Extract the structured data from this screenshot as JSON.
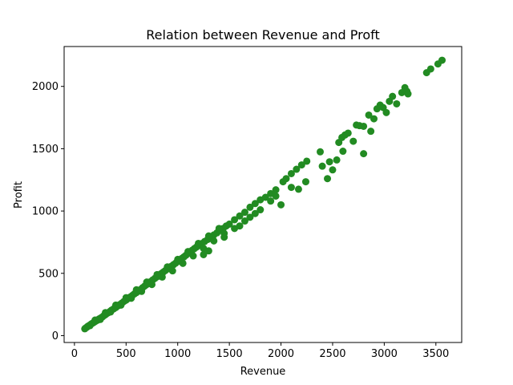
{
  "chart_data": {
    "type": "scatter",
    "title": "Relation between Revenue and Proft",
    "xlabel": "Revenue",
    "ylabel": "Profit",
    "xlim": [
      -100,
      3750
    ],
    "ylim": [
      -55,
      2320
    ],
    "xticks": [
      0,
      500,
      1000,
      1500,
      2000,
      2500,
      3000,
      3500
    ],
    "yticks": [
      0,
      500,
      1000,
      1500,
      2000
    ],
    "xtick_labels": [
      "0",
      "500",
      "1000",
      "1500",
      "2000",
      "2500",
      "3000",
      "3500"
    ],
    "ytick_labels": [
      "0",
      "500",
      "1000",
      "1500",
      "2000"
    ],
    "grid": false,
    "marker_color": "#228b22",
    "points": [
      [
        100,
        55
      ],
      [
        110,
        62
      ],
      [
        120,
        68
      ],
      [
        130,
        75
      ],
      [
        140,
        80
      ],
      [
        155,
        88
      ],
      [
        165,
        95
      ],
      [
        180,
        102
      ],
      [
        195,
        110
      ],
      [
        210,
        118
      ],
      [
        225,
        125
      ],
      [
        240,
        135
      ],
      [
        255,
        142
      ],
      [
        270,
        150
      ],
      [
        285,
        160
      ],
      [
        300,
        168
      ],
      [
        315,
        178
      ],
      [
        330,
        185
      ],
      [
        345,
        195
      ],
      [
        360,
        205
      ],
      [
        380,
        215
      ],
      [
        400,
        225
      ],
      [
        420,
        238
      ],
      [
        440,
        250
      ],
      [
        460,
        262
      ],
      [
        480,
        275
      ],
      [
        500,
        285
      ],
      [
        520,
        298
      ],
      [
        540,
        310
      ],
      [
        560,
        322
      ],
      [
        580,
        335
      ],
      [
        600,
        345
      ],
      [
        620,
        358
      ],
      [
        640,
        370
      ],
      [
        660,
        385
      ],
      [
        680,
        398
      ],
      [
        700,
        410
      ],
      [
        720,
        422
      ],
      [
        740,
        435
      ],
      [
        760,
        448
      ],
      [
        780,
        460
      ],
      [
        800,
        472
      ],
      [
        820,
        485
      ],
      [
        840,
        498
      ],
      [
        860,
        510
      ],
      [
        880,
        522
      ],
      [
        900,
        535
      ],
      [
        920,
        545
      ],
      [
        940,
        558
      ],
      [
        960,
        570
      ],
      [
        980,
        582
      ],
      [
        1000,
        595
      ],
      [
        1020,
        608
      ],
      [
        1040,
        620
      ],
      [
        1060,
        632
      ],
      [
        1080,
        645
      ],
      [
        1100,
        660
      ],
      [
        1120,
        672
      ],
      [
        1140,
        685
      ],
      [
        1160,
        698
      ],
      [
        1180,
        710
      ],
      [
        1200,
        722
      ],
      [
        1230,
        738
      ],
      [
        1260,
        755
      ],
      [
        1290,
        772
      ],
      [
        1320,
        790
      ],
      [
        1350,
        808
      ],
      [
        1380,
        825
      ],
      [
        1410,
        845
      ],
      [
        1440,
        860
      ],
      [
        1470,
        880
      ],
      [
        1500,
        895
      ],
      [
        150,
        80
      ],
      [
        250,
        130
      ],
      [
        350,
        190
      ],
      [
        450,
        245
      ],
      [
        550,
        300
      ],
      [
        650,
        355
      ],
      [
        750,
        410
      ],
      [
        850,
        470
      ],
      [
        950,
        520
      ],
      [
        1050,
        580
      ],
      [
        1150,
        640
      ],
      [
        1250,
        700
      ],
      [
        1350,
        760
      ],
      [
        1450,
        820
      ],
      [
        200,
        125
      ],
      [
        300,
        185
      ],
      [
        400,
        245
      ],
      [
        500,
        305
      ],
      [
        600,
        368
      ],
      [
        700,
        430
      ],
      [
        800,
        490
      ],
      [
        900,
        552
      ],
      [
        1000,
        612
      ],
      [
        1100,
        675
      ],
      [
        1200,
        740
      ],
      [
        1300,
        800
      ],
      [
        1400,
        860
      ],
      [
        1250,
        650
      ],
      [
        1300,
        680
      ],
      [
        1450,
        790
      ],
      [
        1550,
        860
      ],
      [
        1600,
        880
      ],
      [
        1650,
        920
      ],
      [
        1700,
        950
      ],
      [
        1750,
        980
      ],
      [
        1800,
        1010
      ],
      [
        1550,
        930
      ],
      [
        1600,
        960
      ],
      [
        1650,
        990
      ],
      [
        1700,
        1030
      ],
      [
        1750,
        1060
      ],
      [
        1800,
        1090
      ],
      [
        1850,
        1110
      ],
      [
        1900,
        1140
      ],
      [
        1950,
        1170
      ],
      [
        2000,
        1050
      ],
      [
        1900,
        1080
      ],
      [
        1950,
        1120
      ],
      [
        2020,
        1235
      ],
      [
        2050,
        1260
      ],
      [
        2100,
        1300
      ],
      [
        2150,
        1335
      ],
      [
        2200,
        1370
      ],
      [
        2250,
        1400
      ],
      [
        2100,
        1190
      ],
      [
        2170,
        1175
      ],
      [
        2240,
        1235
      ],
      [
        2380,
        1475
      ],
      [
        2400,
        1360
      ],
      [
        2470,
        1395
      ],
      [
        2450,
        1260
      ],
      [
        2500,
        1330
      ],
      [
        2540,
        1410
      ],
      [
        2560,
        1550
      ],
      [
        2590,
        1590
      ],
      [
        2620,
        1610
      ],
      [
        2650,
        1625
      ],
      [
        2600,
        1480
      ],
      [
        2700,
        1560
      ],
      [
        2730,
        1690
      ],
      [
        2760,
        1685
      ],
      [
        2800,
        1680
      ],
      [
        2800,
        1460
      ],
      [
        2850,
        1770
      ],
      [
        2870,
        1640
      ],
      [
        2900,
        1740
      ],
      [
        2930,
        1820
      ],
      [
        2960,
        1850
      ],
      [
        2990,
        1830
      ],
      [
        3020,
        1790
      ],
      [
        3050,
        1880
      ],
      [
        3080,
        1920
      ],
      [
        3120,
        1860
      ],
      [
        3170,
        1950
      ],
      [
        3200,
        1990
      ],
      [
        3220,
        1960
      ],
      [
        3230,
        1940
      ],
      [
        3410,
        2110
      ],
      [
        3450,
        2140
      ],
      [
        3520,
        2180
      ],
      [
        3560,
        2210
      ]
    ]
  }
}
